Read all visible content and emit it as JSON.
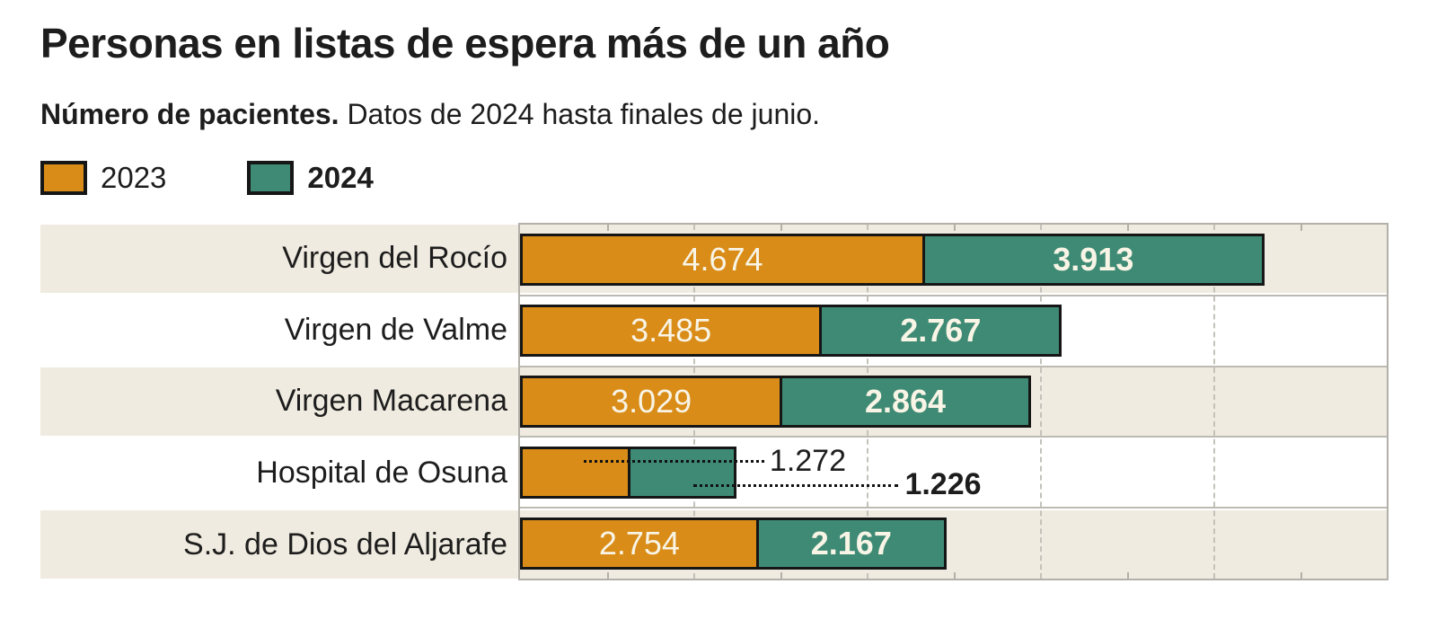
{
  "header": {
    "title": "Personas en listas de espera más de un año",
    "subtitle_lead": "Número de pacientes.",
    "subtitle_rest": " Datos de 2024 hasta finales de junio."
  },
  "chart_data": {
    "type": "bar",
    "orientation": "horizontal",
    "stacked": true,
    "title": "Personas en listas de espera más de un año",
    "categories": [
      "Virgen del Rocío",
      "Virgen de Valme",
      "Virgen Macarena",
      "Hospital de Osuna",
      "S.J. de Dios del Aljarafe"
    ],
    "series": [
      {
        "name": "2023",
        "color": "#d98c17",
        "values": [
          4674,
          3485,
          3029,
          1272,
          2754
        ],
        "value_labels": [
          "4.674",
          "3.485",
          "3.029",
          "1.272",
          "2.754"
        ]
      },
      {
        "name": "2024",
        "color": "#3e8a74",
        "values": [
          3913,
          2767,
          2864,
          1226,
          2167
        ],
        "value_labels": [
          "3.913",
          "2.767",
          "2.864",
          "1.226",
          "2.167"
        ]
      }
    ],
    "axis": {
      "xmin": 0,
      "xmax": 10000,
      "tick_step": 1000,
      "gridline_step": 2000
    },
    "legend_position": "top-left",
    "grid": "dashed-vertical",
    "shaded_rows": [
      0,
      2,
      4
    ],
    "callout_row_index": 3
  },
  "styles": {
    "band_color": "#f0ebe0",
    "bar_border_color": "#161616",
    "value_text_color": "#f8f4e6",
    "text_color": "#1d1d1d",
    "plot_border_color": "#b2b0a9",
    "gridline_color": "#c3c1ba"
  }
}
